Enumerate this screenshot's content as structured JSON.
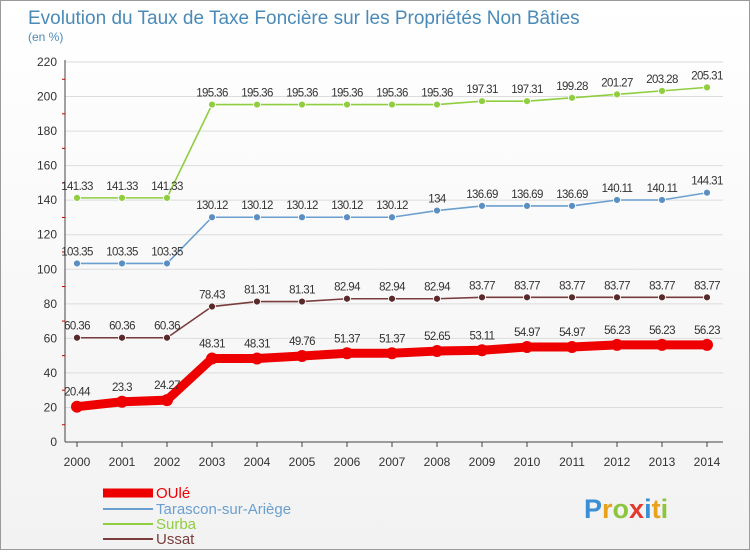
{
  "chart_data": {
    "type": "line",
    "title": "Evolution du Taux de Taxe Foncière sur les Propriétés Non Bâties",
    "units": "(en %)",
    "xlabel": "",
    "ylabel": "",
    "x": [
      "2000",
      "2001",
      "2002",
      "2003",
      "2004",
      "2005",
      "2006",
      "2007",
      "2008",
      "2009",
      "2010",
      "2011",
      "2012",
      "2013",
      "2014"
    ],
    "ylim": [
      0,
      220
    ],
    "yticks": [
      0,
      20,
      40,
      60,
      80,
      100,
      120,
      140,
      160,
      180,
      200,
      220
    ],
    "grid": "horizontal",
    "legend_position": "bottom-left",
    "series": [
      {
        "name": "Surba",
        "color": "#8fce3f",
        "marker": "#8fce3f",
        "values": [
          141.33,
          141.33,
          141.33,
          195.36,
          195.36,
          195.36,
          195.36,
          195.36,
          195.36,
          197.31,
          197.31,
          199.28,
          201.27,
          203.28,
          205.31
        ],
        "labels": [
          "141.33",
          "141.33",
          "141.33",
          "195.36",
          "195.36",
          "195.36",
          "195.36",
          "195.36",
          "195.36",
          "197.31",
          "197.31",
          "199.28",
          "201.27",
          "203.28",
          "205.31"
        ]
      },
      {
        "name": "Tarascon-sur-Ariège",
        "color": "#6a9fd0",
        "marker": "#5b8fc4",
        "values": [
          103.35,
          103.35,
          103.35,
          130.12,
          130.12,
          130.12,
          130.12,
          130.12,
          134.0,
          136.69,
          136.69,
          136.69,
          140.11,
          140.11,
          144.31
        ],
        "labels": [
          "103.35",
          "103.35",
          "103.35",
          "130.12",
          "130.12",
          "130.12",
          "130.12",
          "130.12",
          "134",
          "136.69",
          "136.69",
          "136.69",
          "140.11",
          "140.11",
          "144.31"
        ]
      },
      {
        "name": "Ussat",
        "color": "#7a3d3d",
        "marker": "#5a2a2a",
        "values": [
          60.36,
          60.36,
          60.36,
          78.43,
          81.31,
          81.31,
          82.94,
          82.94,
          82.94,
          83.77,
          83.77,
          83.77,
          83.77,
          83.77,
          83.77
        ],
        "labels": [
          "60.36",
          "60.36",
          "60.36",
          "78.43",
          "81.31",
          "81.31",
          "82.94",
          "82.94",
          "82.94",
          "83.77",
          "83.77",
          "83.77",
          "83.77",
          "83.77",
          "83.77"
        ]
      },
      {
        "name": "OUlé",
        "color": "#ee0000",
        "marker": "#ee0000",
        "values": [
          20.44,
          23.3,
          24.27,
          48.31,
          48.31,
          49.76,
          51.37,
          51.37,
          52.65,
          53.11,
          54.97,
          54.97,
          56.23,
          56.23,
          56.23
        ],
        "labels": [
          "20.44",
          "23.3",
          "24.27",
          "48.31",
          "48.31",
          "49.76",
          "51.37",
          "51.37",
          "52.65",
          "53.11",
          "54.97",
          "54.97",
          "56.23",
          "56.23",
          "56.23"
        ]
      }
    ],
    "legend": [
      {
        "name": "OUlé",
        "color": "#ee0000"
      },
      {
        "name": "Tarascon-sur-Ariège",
        "color": "#6a9fd0"
      },
      {
        "name": "Surba",
        "color": "#8fce3f"
      },
      {
        "name": "Ussat",
        "color": "#7a3d3d"
      }
    ]
  },
  "logo": {
    "text": "Proxiti",
    "letters": [
      {
        "ch": "P",
        "color": "#3a8fd6"
      },
      {
        "ch": "r",
        "color": "#e9a21b"
      },
      {
        "ch": "o",
        "color": "#8cc63e"
      },
      {
        "ch": "x",
        "color": "#e23b2e"
      },
      {
        "ch": "i",
        "color": "#3a8fd6"
      },
      {
        "ch": "t",
        "color": "#e9a21b"
      },
      {
        "ch": "i",
        "color": "#8cc63e"
      }
    ]
  }
}
